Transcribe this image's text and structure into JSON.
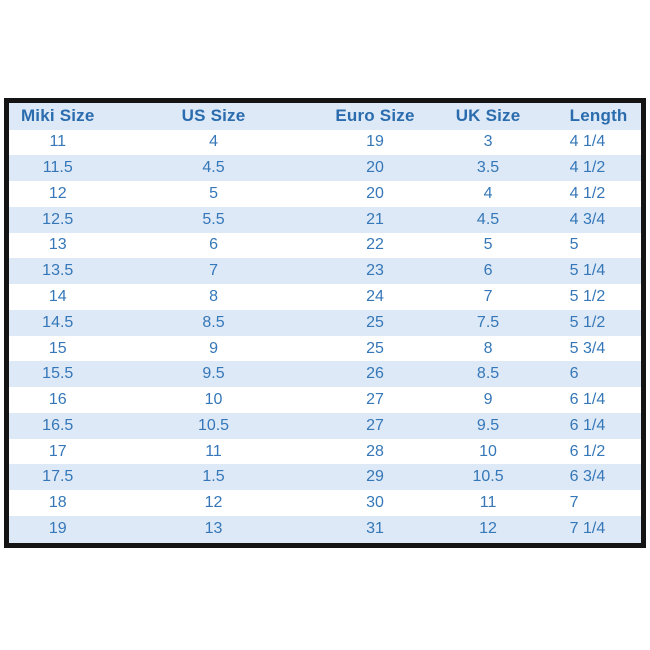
{
  "chart_data": {
    "type": "table",
    "columns": [
      "Miki Size",
      "US Size",
      "Euro Size",
      "UK Size",
      "Length"
    ],
    "rows": [
      [
        "11",
        "4",
        "19",
        "3",
        "4 1/4"
      ],
      [
        "11.5",
        "4.5",
        "20",
        "3.5",
        "4 1/2"
      ],
      [
        "12",
        "5",
        "20",
        "4",
        "4 1/2"
      ],
      [
        "12.5",
        "5.5",
        "21",
        "4.5",
        "4 3/4"
      ],
      [
        "13",
        "6",
        "22",
        "5",
        "5"
      ],
      [
        "13.5",
        "7",
        "23",
        "6",
        "5 1/4"
      ],
      [
        "14",
        "8",
        "24",
        "7",
        "5 1/2"
      ],
      [
        "14.5",
        "8.5",
        "25",
        "7.5",
        "5 1/2"
      ],
      [
        "15",
        "9",
        "25",
        "8",
        "5 3/4"
      ],
      [
        "15.5",
        "9.5",
        "26",
        "8.5",
        "6"
      ],
      [
        "16",
        "10",
        "27",
        "9",
        "6 1/4"
      ],
      [
        "16.5",
        "10.5",
        "27",
        "9.5",
        "6 1/4"
      ],
      [
        "17",
        "11",
        "28",
        "10",
        "6 1/2"
      ],
      [
        "17.5",
        "1.5",
        "29",
        "10.5",
        "6 3/4"
      ],
      [
        "18",
        "12",
        "30",
        "11",
        "7"
      ],
      [
        "19",
        "13",
        "31",
        "12",
        "7 1/4"
      ]
    ],
    "layout": {
      "column_alignment": [
        "center",
        "center",
        "center",
        "center",
        "left"
      ],
      "column_width_percents": [
        15.7,
        33.6,
        17.1,
        18.4,
        15.2
      ],
      "striped": true
    }
  },
  "colors": {
    "header_text": "#2a6cae",
    "cell_text": "#3577b8",
    "stripe_bg": "#dde9f6",
    "row_bg": "#ffffff",
    "border": "#141414",
    "page_bg": "#ffffff"
  }
}
